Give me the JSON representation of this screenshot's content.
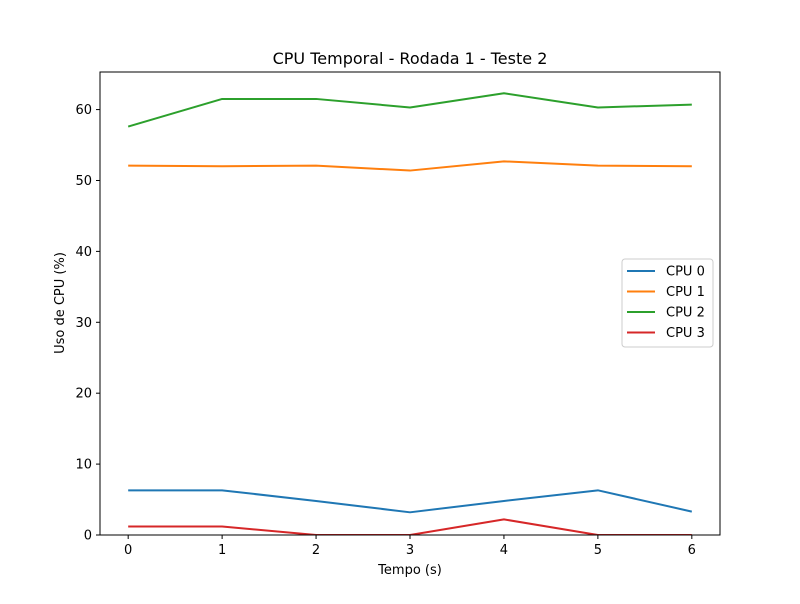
{
  "chart_data": {
    "type": "line",
    "title": "CPU Temporal - Rodada 1 - Teste 2",
    "xlabel": "Tempo (s)",
    "ylabel": "Uso de CPU (%)",
    "x": [
      0,
      1,
      2,
      3,
      4,
      5,
      6
    ],
    "xlim": [
      -0.3,
      6.3
    ],
    "ylim": [
      0,
      65.3
    ],
    "xticks": [
      0,
      1,
      2,
      3,
      4,
      5,
      6
    ],
    "yticks": [
      0,
      10,
      20,
      30,
      40,
      50,
      60
    ],
    "grid": false,
    "legend_position": "center-right",
    "series": [
      {
        "name": "CPU 0",
        "color": "#1f77b4",
        "values": [
          6.3,
          6.3,
          4.8,
          3.2,
          4.8,
          6.3,
          3.3
        ]
      },
      {
        "name": "CPU 1",
        "color": "#ff7f0e",
        "values": [
          52.1,
          52.0,
          52.1,
          51.4,
          52.7,
          52.1,
          52.0
        ]
      },
      {
        "name": "CPU 2",
        "color": "#2ca02c",
        "values": [
          57.6,
          61.5,
          61.5,
          60.3,
          62.3,
          60.3,
          60.7
        ]
      },
      {
        "name": "CPU 3",
        "color": "#d62728",
        "values": [
          1.2,
          1.2,
          0.0,
          0.0,
          2.2,
          0.0,
          0.0
        ]
      }
    ]
  }
}
